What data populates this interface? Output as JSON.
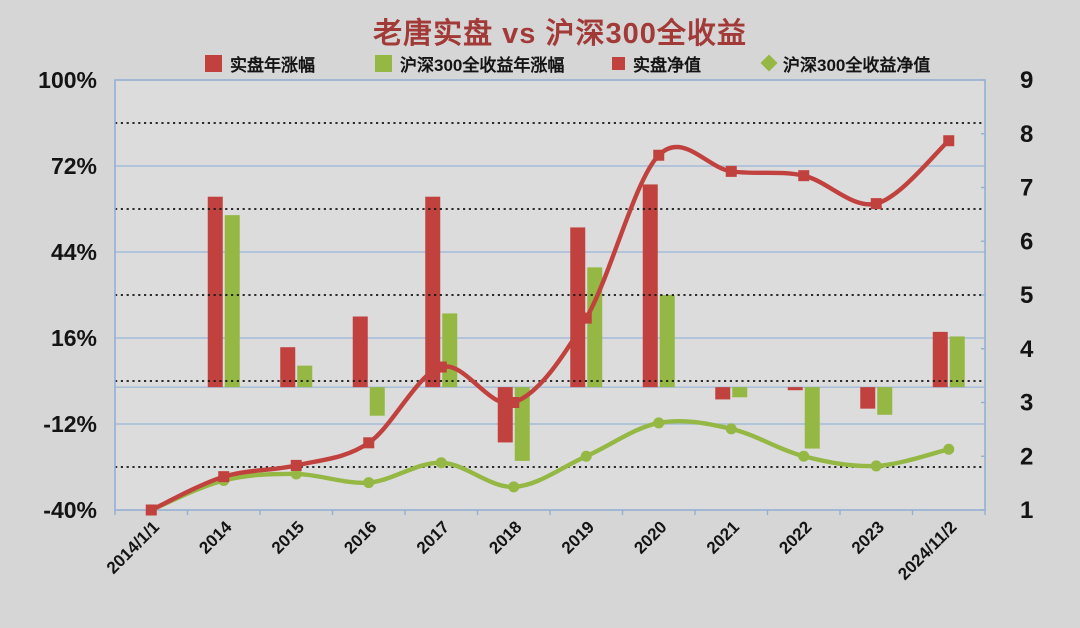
{
  "page": {
    "background": "#d6d6d6",
    "plot_background": "#dcdcdc"
  },
  "chart_data": {
    "type": "combo (bar + line)",
    "title": "老唐实盘 vs 沪深300全收益",
    "title_color": "#a23b38",
    "categories": [
      "2014/1/1",
      "2014",
      "2015",
      "2016",
      "2017",
      "2018",
      "2019",
      "2020",
      "2021",
      "2022",
      "2023",
      "2024/11/2"
    ],
    "series": [
      {
        "name": "实盘年涨幅",
        "type": "bar",
        "axis": "left",
        "color": "#c0413d",
        "values": [
          null,
          62,
          13,
          23,
          62,
          -18,
          52,
          66,
          -4,
          -1,
          -7,
          18
        ]
      },
      {
        "name": "沪深300全收益年涨幅",
        "type": "bar",
        "axis": "left",
        "color": "#94b843",
        "values": [
          null,
          56,
          7,
          -9.3,
          24,
          -24,
          39,
          30,
          -3.3,
          -20,
          -9,
          16.5
        ]
      },
      {
        "name": "实盘净值",
        "type": "line",
        "axis": "right",
        "marker": "square",
        "color": "#c0413d",
        "values": [
          1.0,
          1.62,
          1.83,
          2.25,
          3.66,
          3.0,
          4.57,
          7.6,
          7.3,
          7.22,
          6.7,
          7.87
        ]
      },
      {
        "name": "沪深300全收益净值",
        "type": "line",
        "axis": "right",
        "marker": "circle",
        "color": "#94b843",
        "values": [
          1.0,
          1.55,
          1.67,
          1.51,
          1.88,
          1.43,
          2.0,
          2.62,
          2.51,
          2.0,
          1.82,
          2.13
        ]
      }
    ],
    "left_axis": {
      "min": -40,
      "max": 100,
      "unit": "%",
      "major_step": 28,
      "minor_step": 14,
      "tick_labels": [
        "100%",
        "72%",
        "44%",
        "16%",
        "-12%",
        "-40%"
      ]
    },
    "right_axis": {
      "min": 1,
      "max": 9,
      "step": 1,
      "tick_labels": [
        "9",
        "8",
        "7",
        "6",
        "5",
        "4",
        "3",
        "2",
        "1"
      ]
    },
    "grid": {
      "solid_color": "#a3bbd8",
      "dotted_color": "#141414",
      "border_color": "#93b0d2"
    },
    "legend_position": "top"
  }
}
